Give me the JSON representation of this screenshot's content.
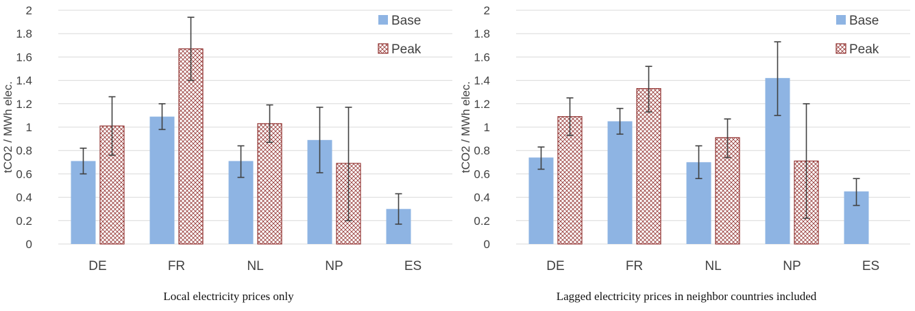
{
  "colors": {
    "base": "#8eb4e3",
    "peak_stroke": "#943634",
    "peak_fill": "#ffffff",
    "grid": "#d9d9d9",
    "error_bar": "#404040"
  },
  "chart_data": [
    {
      "type": "bar",
      "caption": "Local electricity prices only",
      "ylabel": "tCO2 / MWh elec.",
      "categories": [
        "DE",
        "FR",
        "NL",
        "NP",
        "ES"
      ],
      "ylim": [
        0,
        2
      ],
      "yticks": [
        "0",
        "0.2",
        "0.4",
        "0.6",
        "0.8",
        "1",
        "1.2",
        "1.4",
        "1.6",
        "1.8",
        "2"
      ],
      "legend_position": "top-right",
      "series": [
        {
          "name": "Base",
          "pattern": "solid",
          "values": [
            0.71,
            1.09,
            0.71,
            0.89,
            0.3
          ],
          "err_low": [
            0.6,
            0.98,
            0.57,
            0.61,
            0.17
          ],
          "err_high": [
            0.82,
            1.2,
            0.84,
            1.17,
            0.43
          ]
        },
        {
          "name": "Peak",
          "pattern": "crosshatch",
          "values": [
            1.01,
            1.67,
            1.03,
            0.69,
            null
          ],
          "err_low": [
            0.76,
            1.4,
            0.87,
            0.2,
            null
          ],
          "err_high": [
            1.26,
            1.94,
            1.19,
            1.17,
            null
          ]
        }
      ]
    },
    {
      "type": "bar",
      "caption": "Lagged electricity prices in neighbor countries included",
      "ylabel": "tCO2 / MWh elec.",
      "categories": [
        "DE",
        "FR",
        "NL",
        "NP",
        "ES"
      ],
      "ylim": [
        0,
        2
      ],
      "yticks": [
        "0",
        "0.2",
        "0.4",
        "0.6",
        "0.8",
        "1",
        "1.2",
        "1.4",
        "1.6",
        "1.8",
        "2"
      ],
      "legend_position": "top-right",
      "series": [
        {
          "name": "Base",
          "pattern": "solid",
          "values": [
            0.74,
            1.05,
            0.7,
            1.42,
            0.45
          ],
          "err_low": [
            0.64,
            0.94,
            0.56,
            1.1,
            0.33
          ],
          "err_high": [
            0.83,
            1.16,
            0.84,
            1.73,
            0.56
          ]
        },
        {
          "name": "Peak",
          "pattern": "crosshatch",
          "values": [
            1.09,
            1.33,
            0.91,
            0.71,
            null
          ],
          "err_low": [
            0.93,
            1.13,
            0.74,
            0.22,
            null
          ],
          "err_high": [
            1.25,
            1.52,
            1.07,
            1.2,
            null
          ]
        }
      ]
    }
  ]
}
